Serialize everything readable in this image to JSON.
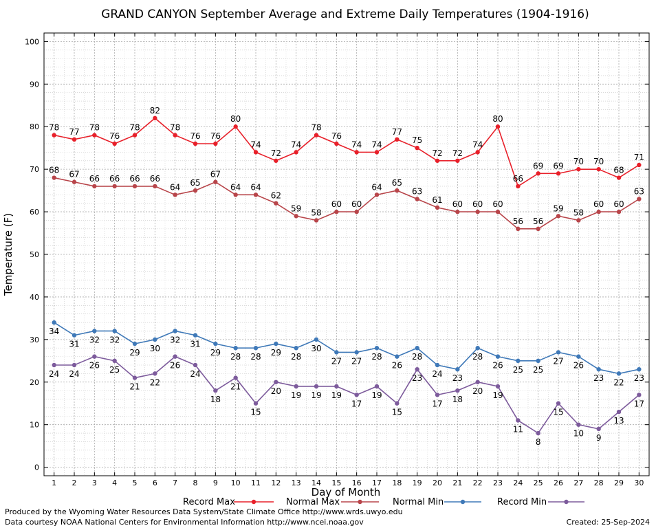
{
  "footer": {
    "produced_by": "Produced by the Wyoming Water Resources Data System/State Climate Office http://www.wrds.uwyo.edu",
    "courtesy": "Data courtesy NOAA National Centers for Environmental Information http://www.ncei.noaa.gov",
    "created": "Created:  25-Sep-2024"
  },
  "chart_data": {
    "type": "line",
    "title": "GRAND CANYON September Average and Extreme Daily Temperatures (1904-1916)",
    "xlabel": "Day of Month",
    "ylabel": "Temperature (F)",
    "xlim": [
      0.5,
      30.5
    ],
    "ylim": [
      -2,
      102
    ],
    "yticks": [
      0,
      10,
      20,
      30,
      40,
      50,
      60,
      70,
      80,
      90,
      100
    ],
    "x": [
      1,
      2,
      3,
      4,
      5,
      6,
      7,
      8,
      9,
      10,
      11,
      12,
      13,
      14,
      15,
      16,
      17,
      18,
      19,
      20,
      21,
      22,
      23,
      24,
      25,
      26,
      27,
      28,
      29,
      30
    ],
    "grid": true,
    "legend_position": "bottom",
    "series": [
      {
        "name": "Record Max",
        "color": "#e8202a",
        "label_pos": "above",
        "values": [
          78,
          77,
          78,
          76,
          78,
          82,
          78,
          76,
          76,
          80,
          74,
          72,
          74,
          78,
          76,
          74,
          74,
          77,
          75,
          72,
          72,
          74,
          80,
          66,
          69,
          69,
          70,
          70,
          68,
          71
        ]
      },
      {
        "name": "Normal Max",
        "color": "#b8454a",
        "label_pos": "above",
        "values": [
          68,
          67,
          66,
          66,
          66,
          66,
          64,
          65,
          67,
          64,
          64,
          62,
          59,
          58,
          60,
          60,
          64,
          65,
          63,
          61,
          60,
          60,
          60,
          56,
          56,
          59,
          58,
          60,
          60,
          63
        ]
      },
      {
        "name": "Normal Min",
        "color": "#3f79b8",
        "label_pos": "below",
        "values": [
          34,
          31,
          32,
          32,
          29,
          30,
          32,
          31,
          29,
          28,
          28,
          29,
          28,
          30,
          27,
          27,
          28,
          26,
          28,
          24,
          23,
          28,
          26,
          25,
          25,
          27,
          26,
          23,
          22,
          23
        ]
      },
      {
        "name": "Record Min",
        "color": "#7d5b9c",
        "label_pos": "below",
        "values": [
          24,
          24,
          26,
          25,
          21,
          22,
          26,
          24,
          18,
          21,
          15,
          20,
          19,
          19,
          19,
          17,
          19,
          15,
          23,
          17,
          18,
          20,
          19,
          11,
          8,
          15,
          10,
          9,
          13,
          17
        ]
      }
    ]
  }
}
